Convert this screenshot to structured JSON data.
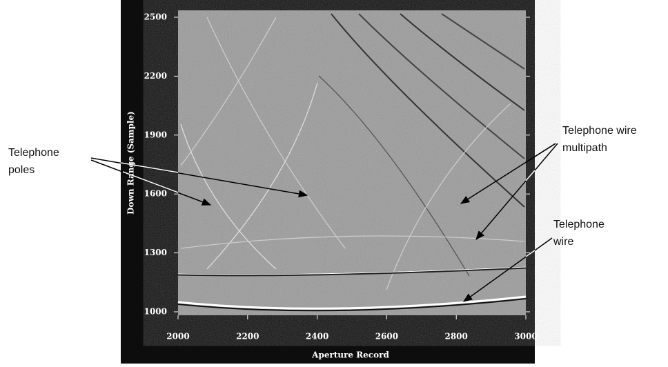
{
  "chart_data": {
    "type": "image",
    "x_label": "Aperture Record",
    "y_label": "Down Range (Sample)",
    "xlim": [
      2000,
      3000
    ],
    "xticks": [
      2000,
      2200,
      2400,
      2600,
      2800,
      3000
    ],
    "ylim": [
      1000,
      2500
    ],
    "yticks": [
      1000,
      1300,
      1600,
      1900,
      2200,
      2500
    ],
    "annotations": [
      {
        "lines": [
          "Telephone",
          "poles"
        ]
      },
      {
        "lines": [
          "Telephone wire",
          "multipath"
        ]
      },
      {
        "lines": [
          "Telephone",
          "wire"
        ]
      }
    ]
  }
}
